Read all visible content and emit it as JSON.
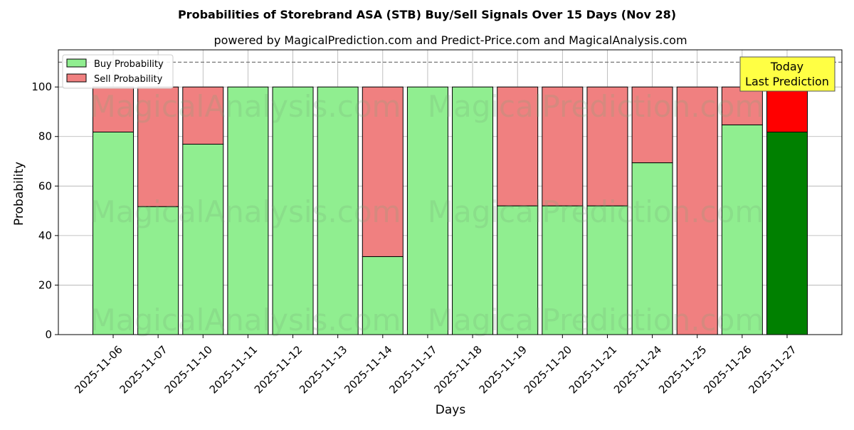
{
  "chart_data": {
    "type": "bar",
    "stacked": true,
    "title": "Probabilities of Storebrand ASA (STB) Buy/Sell Signals Over 15 Days (Nov 28)",
    "subtitle": "powered by MagicalPrediction.com and Predict-Price.com and MagicalAnalysis.com",
    "xlabel": "Days",
    "ylabel": "Probability",
    "ylim": [
      0,
      115
    ],
    "yticks": [
      0,
      20,
      40,
      60,
      80,
      100
    ],
    "grid": true,
    "legend_position": "top-left",
    "categories": [
      "2025-11-06",
      "2025-11-07",
      "2025-11-10",
      "2025-11-11",
      "2025-11-12",
      "2025-11-13",
      "2025-11-14",
      "2025-11-17",
      "2025-11-18",
      "2025-11-19",
      "2025-11-20",
      "2025-11-21",
      "2025-11-24",
      "2025-11-25",
      "2025-11-26",
      "2025-11-27"
    ],
    "series": [
      {
        "name": "Buy Probability",
        "color": "#90ee90",
        "values": [
          81.8,
          51.7,
          76.9,
          100,
          100,
          100,
          31.5,
          100,
          100,
          52.0,
          52.0,
          52.0,
          69.4,
          0,
          84.7,
          81.8
        ]
      },
      {
        "name": "Sell Probability",
        "color": "#f08080",
        "values": [
          18.2,
          48.3,
          23.1,
          0,
          0,
          0,
          68.5,
          0,
          0,
          48.0,
          48.0,
          48.0,
          30.6,
          100,
          15.3,
          18.2
        ]
      }
    ],
    "highlight": {
      "index": 15,
      "buy_color": "#008000",
      "sell_color": "#ff0000"
    },
    "reference_line": 110,
    "annotation": [
      "Today",
      "Last Prediction"
    ],
    "watermarks": [
      "MagicalAnalysis.com",
      "MagicalPrediction.com"
    ]
  }
}
